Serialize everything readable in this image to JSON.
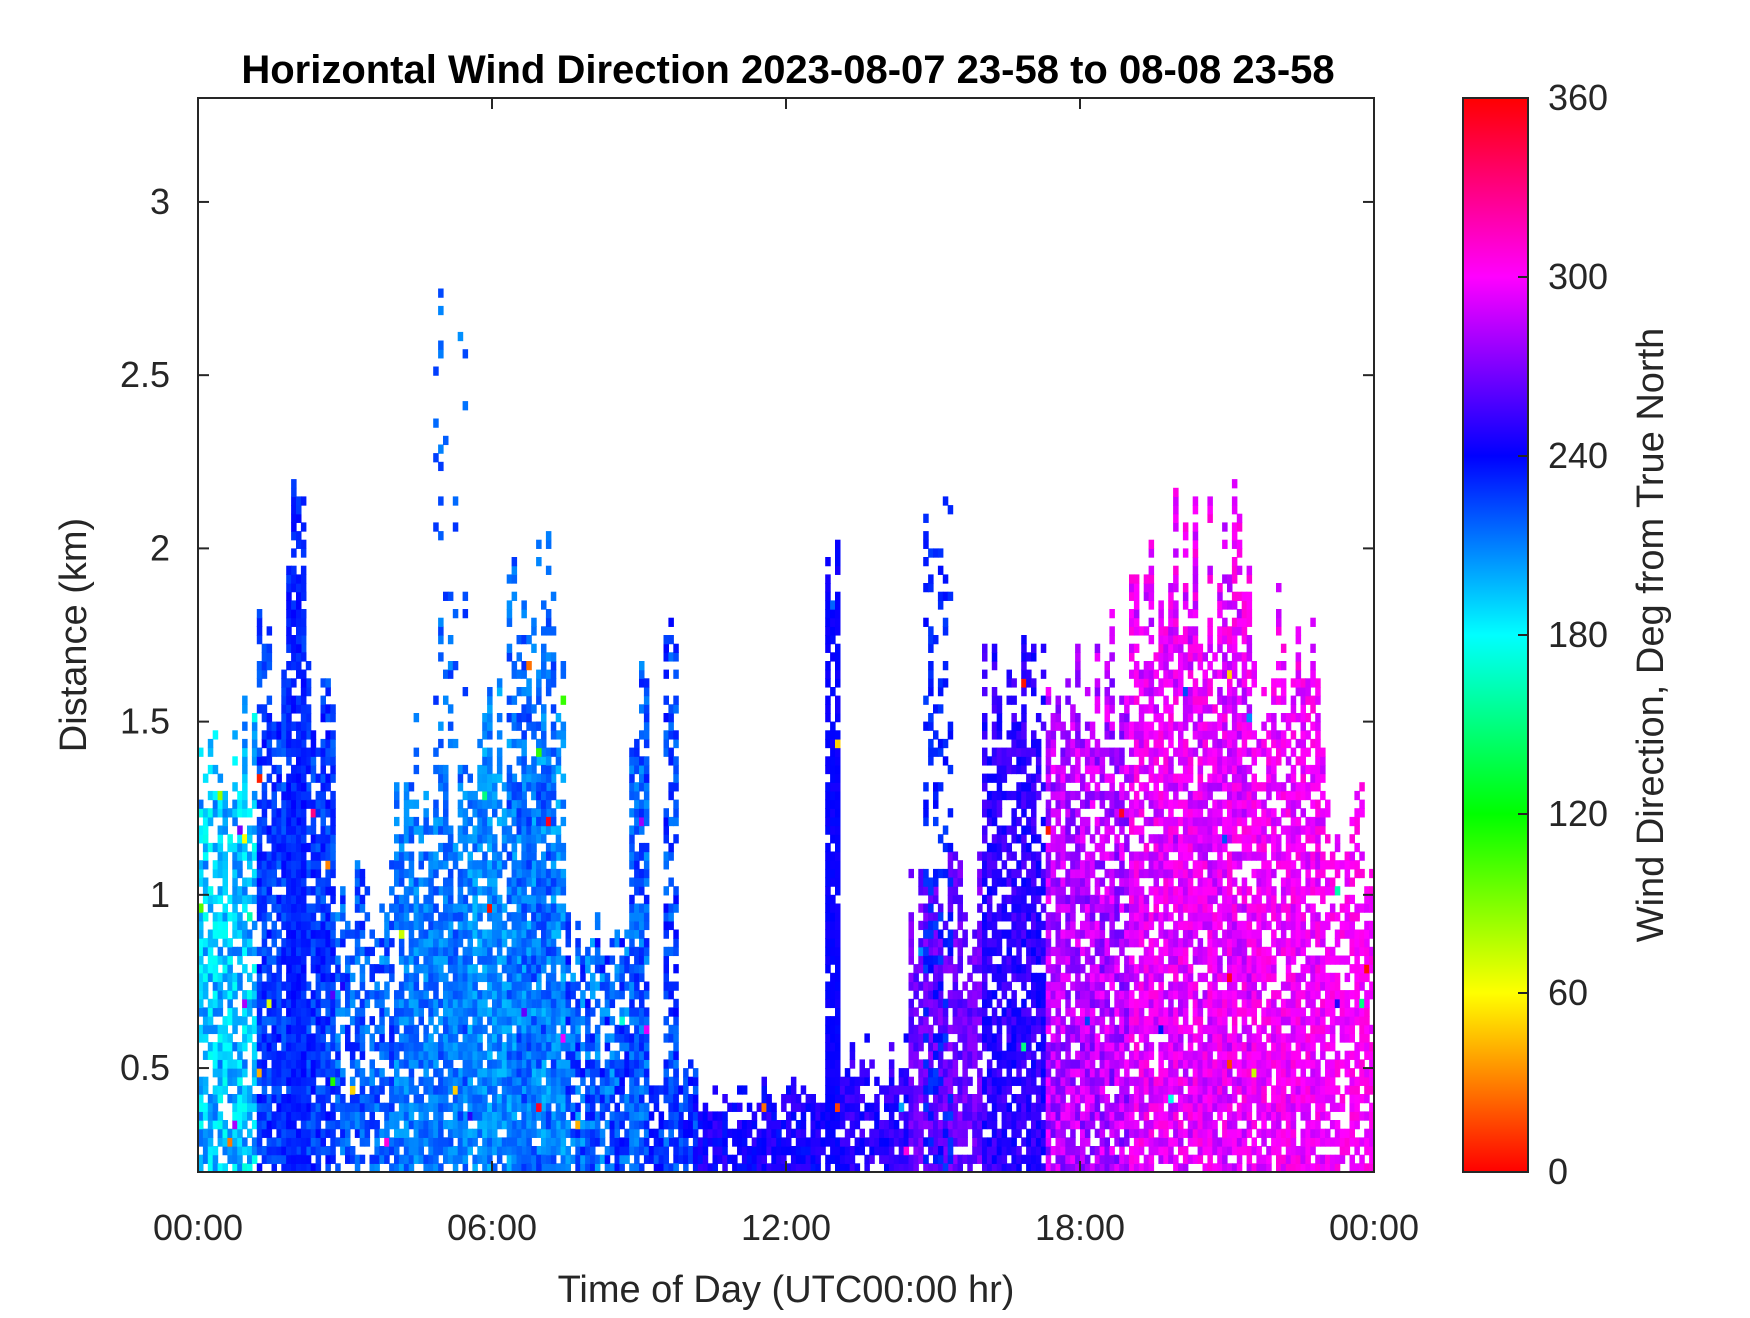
{
  "chart_data": {
    "type": "heatmap",
    "title": "Horizontal Wind Direction 2023-08-07 23-58 to 08-08 23-58",
    "xlabel": "Time of Day (UTC00:00 hr)",
    "ylabel": "Distance (km)",
    "x_unit": "hours",
    "xlim": [
      0,
      24
    ],
    "ylim": [
      0.2,
      3.3
    ],
    "x_ticks": [
      0,
      6,
      12,
      18,
      24
    ],
    "x_tick_labels": [
      "00:00",
      "06:00",
      "12:00",
      "18:00",
      "00:00"
    ],
    "y_ticks": [
      0.5,
      1,
      1.5,
      2,
      2.5,
      3
    ],
    "y_tick_labels": [
      "0.5",
      "1",
      "1.5",
      "2",
      "2.5",
      "3"
    ],
    "colorbar": {
      "label": "Wind Direction, Deg from True North",
      "range": [
        0,
        360
      ],
      "ticks": [
        0,
        60,
        120,
        180,
        240,
        300,
        360
      ],
      "tick_labels": [
        "0",
        "60",
        "120",
        "180",
        "240",
        "300",
        "360"
      ],
      "colormap": "hsv",
      "color_stops": [
        {
          "value": 0,
          "color": "#ff0000"
        },
        {
          "value": 60,
          "color": "#ffff00"
        },
        {
          "value": 120,
          "color": "#00ff00"
        },
        {
          "value": 180,
          "color": "#00ffff"
        },
        {
          "value": 240,
          "color": "#0000ff"
        },
        {
          "value": 300,
          "color": "#ff00ff"
        },
        {
          "value": 360,
          "color": "#ff0000"
        }
      ]
    },
    "data_summary": {
      "time_step_hours": 0.1,
      "height_step_km": 0.025,
      "regions": [
        {
          "t0": 0.0,
          "t1": 1.2,
          "top": 1.5,
          "dir_low": 175,
          "dir_high": 215,
          "density": 0.75
        },
        {
          "t0": 1.2,
          "t1": 2.8,
          "top": 1.8,
          "dir_low": 215,
          "dir_high": 240,
          "density": 0.85
        },
        {
          "t0": 1.8,
          "t1": 2.2,
          "top": 2.35,
          "dir_low": 225,
          "dir_high": 240,
          "density": 0.9
        },
        {
          "t0": 2.8,
          "t1": 4.0,
          "top": 1.1,
          "dir_low": 205,
          "dir_high": 235,
          "density": 0.7
        },
        {
          "t0": 4.0,
          "t1": 5.5,
          "top": 1.45,
          "dir_low": 200,
          "dir_high": 225,
          "density": 0.85
        },
        {
          "t0": 4.8,
          "t1": 5.5,
          "top": 2.8,
          "dir_low": 205,
          "dir_high": 230,
          "density": 0.15
        },
        {
          "t0": 5.5,
          "t1": 7.5,
          "top": 1.6,
          "dir_low": 195,
          "dir_high": 220,
          "density": 0.85
        },
        {
          "t0": 6.3,
          "t1": 7.3,
          "top": 2.2,
          "dir_low": 205,
          "dir_high": 230,
          "density": 0.5
        },
        {
          "t0": 7.5,
          "t1": 8.8,
          "top": 0.9,
          "dir_low": 200,
          "dir_high": 240,
          "density": 0.8
        },
        {
          "t0": 8.8,
          "t1": 9.2,
          "top": 1.75,
          "dir_low": 205,
          "dir_high": 235,
          "density": 0.85
        },
        {
          "t0": 9.2,
          "t1": 10.2,
          "top": 0.5,
          "dir_low": 215,
          "dir_high": 245,
          "density": 0.8
        },
        {
          "t0": 9.5,
          "t1": 9.8,
          "top": 1.8,
          "dir_low": 210,
          "dir_high": 240,
          "density": 0.55
        },
        {
          "t0": 10.2,
          "t1": 12.8,
          "top": 0.45,
          "dir_low": 235,
          "dir_high": 255,
          "density": 0.85
        },
        {
          "t0": 12.8,
          "t1": 13.1,
          "top": 2.1,
          "dir_low": 238,
          "dir_high": 245,
          "density": 0.95
        },
        {
          "t0": 13.1,
          "t1": 14.5,
          "top": 0.55,
          "dir_low": 240,
          "dir_high": 260,
          "density": 0.85
        },
        {
          "t0": 14.5,
          "t1": 16.0,
          "top": 1.1,
          "dir_low": 255,
          "dir_high": 275,
          "density": 0.85
        },
        {
          "t0": 14.8,
          "t1": 15.4,
          "top": 2.25,
          "dir_low": 225,
          "dir_high": 240,
          "density": 0.3
        },
        {
          "t0": 16.0,
          "t1": 17.3,
          "top": 1.7,
          "dir_low": 240,
          "dir_high": 260,
          "density": 0.8
        },
        {
          "t0": 17.3,
          "t1": 19.0,
          "top": 1.75,
          "dir_low": 265,
          "dir_high": 300,
          "density": 0.85
        },
        {
          "t0": 19.0,
          "t1": 21.5,
          "top": 2.1,
          "dir_low": 280,
          "dir_high": 310,
          "density": 0.85
        },
        {
          "t0": 21.5,
          "t1": 23.0,
          "top": 1.8,
          "dir_low": 285,
          "dir_high": 310,
          "density": 0.8
        },
        {
          "t0": 23.0,
          "t1": 24.0,
          "top": 1.25,
          "dir_low": 290,
          "dir_high": 310,
          "density": 0.7
        }
      ]
    }
  }
}
